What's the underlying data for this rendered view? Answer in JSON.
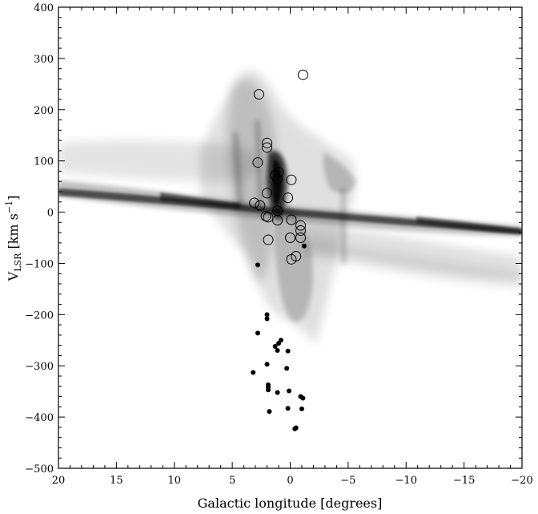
{
  "chart_data": {
    "type": "scatter",
    "xlabel": "Galactic longitude [degrees]",
    "ylabel": {
      "main": "V",
      "subscript": "LSR",
      "units_open": " [km s",
      "exponent": "−1",
      "units_close": "]"
    },
    "xlim": [
      20,
      -20
    ],
    "ylim": [
      -500,
      400
    ],
    "x_ticks": [
      20,
      15,
      10,
      5,
      0,
      -5,
      -10,
      -15,
      -20
    ],
    "x_tick_labels": [
      "20",
      "15",
      "10",
      "5",
      "0",
      "−5",
      "−10",
      "−15",
      "−20"
    ],
    "y_ticks": [
      400,
      300,
      200,
      100,
      0,
      -100,
      -200,
      -300,
      -400,
      -500
    ],
    "y_tick_labels": [
      "400",
      "300",
      "200",
      "100",
      "0",
      "−100",
      "−200",
      "−300",
      "−400",
      "−500"
    ],
    "background": "greyscale emission map: band along v≈0 from l=+20 to l=−20, broad grey halo spanning v≈−250 to +270 near l≈0",
    "series": [
      {
        "marker": "open-circle",
        "points": [
          [
            2.7,
            230
          ],
          [
            -1.1,
            268
          ],
          [
            2.0,
            135
          ],
          [
            2.0,
            126
          ],
          [
            2.8,
            97
          ],
          [
            1.0,
            78
          ],
          [
            1.3,
            72
          ],
          [
            1.1,
            64
          ],
          [
            -0.1,
            63
          ],
          [
            2.0,
            37
          ],
          [
            0.2,
            28
          ],
          [
            3.1,
            18
          ],
          [
            2.6,
            13
          ],
          [
            1.1,
            3
          ],
          [
            2.1,
            -8
          ],
          [
            1.9,
            -10
          ],
          [
            1.1,
            -16
          ],
          [
            -0.1,
            -15
          ],
          [
            -0.9,
            -26
          ],
          [
            -0.9,
            -36
          ],
          [
            0.0,
            -50
          ],
          [
            -0.9,
            -50
          ],
          [
            1.9,
            -54
          ],
          [
            -0.5,
            -86
          ],
          [
            -0.1,
            -92
          ]
        ]
      },
      {
        "marker": "filled-dot",
        "points": [
          [
            2.8,
            -103
          ],
          [
            -1.2,
            -66
          ],
          [
            2.0,
            -200
          ],
          [
            2.0,
            -208
          ],
          [
            2.8,
            -236
          ],
          [
            0.8,
            -250
          ],
          [
            1.0,
            -256
          ],
          [
            1.3,
            -262
          ],
          [
            1.1,
            -270
          ],
          [
            0.2,
            -271
          ],
          [
            2.0,
            -297
          ],
          [
            0.3,
            -305
          ],
          [
            3.2,
            -313
          ],
          [
            1.9,
            -337
          ],
          [
            1.9,
            -342
          ],
          [
            1.9,
            -347
          ],
          [
            1.1,
            -352
          ],
          [
            0.1,
            -349
          ],
          [
            -0.9,
            -360
          ],
          [
            -1.1,
            -363
          ],
          [
            0.2,
            -383
          ],
          [
            -1.0,
            -384
          ],
          [
            1.8,
            -389
          ],
          [
            -0.5,
            -421
          ],
          [
            -0.4,
            -423
          ]
        ]
      }
    ]
  },
  "colors": {
    "ink": "#000000",
    "band": "#1a1a1a",
    "halo": "#6a6a6a"
  }
}
